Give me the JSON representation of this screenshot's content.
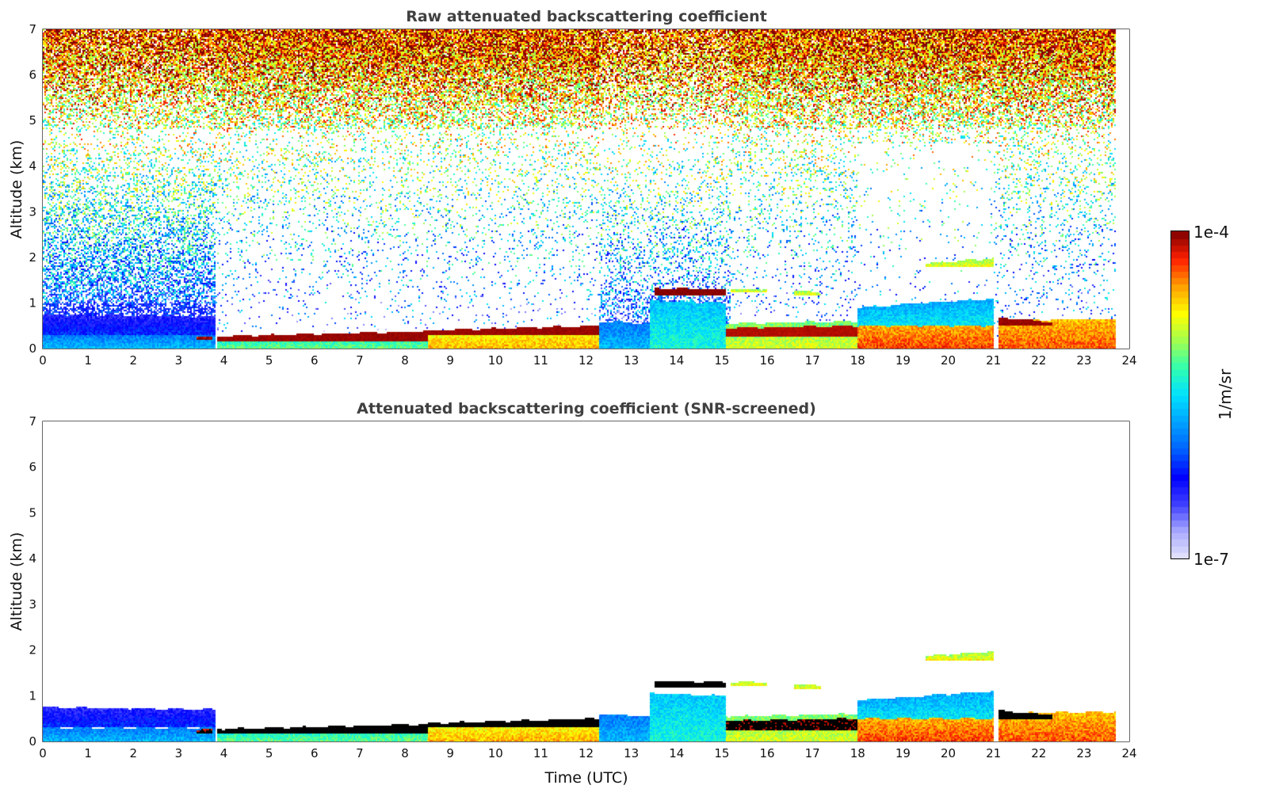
{
  "chart_data": {
    "type": "heatmap",
    "panels": [
      {
        "id": "raw",
        "title": "Raw attenuated backscattering coefficient",
        "ylabel": "Altitude (km)",
        "xlabel": "",
        "show_noise": true,
        "saturate_black": false
      },
      {
        "id": "screened",
        "title": "Attenuated backscattering coefficient (SNR-screened)",
        "ylabel": "Altitude (km)",
        "xlabel": "Time (UTC)",
        "show_noise": false,
        "saturate_black": true
      }
    ],
    "xlim": [
      0,
      24
    ],
    "ylim": [
      0,
      7
    ],
    "x_ticks": [
      "0",
      "1",
      "2",
      "3",
      "4",
      "5",
      "6",
      "7",
      "8",
      "9",
      "10",
      "11",
      "12",
      "13",
      "14",
      "15",
      "16",
      "17",
      "18",
      "19",
      "20",
      "21",
      "22",
      "23",
      "24"
    ],
    "y_ticks": [
      "0",
      "1",
      "2",
      "3",
      "4",
      "5",
      "6",
      "7"
    ],
    "data_end_time": 23.7,
    "colorbar": {
      "label": "1/m/sr",
      "min_label": "1e-7",
      "max_label": "1e-4",
      "log10_range": [
        -7,
        -4
      ],
      "colors": [
        "#e6e6fa",
        "#aaaaff",
        "#4040ff",
        "#0000ff",
        "#0060ff",
        "#00a0ff",
        "#00e0ff",
        "#30ffb0",
        "#a0ff50",
        "#ffff00",
        "#ffa000",
        "#ff2000",
        "#800000"
      ]
    },
    "layers": [
      {
        "t": [
          0,
          3.8
        ],
        "z_lo": 0,
        "z_hi": [
          0.3,
          0.3
        ],
        "log10_beta": -5.9
      },
      {
        "t": [
          0,
          3.8
        ],
        "z_lo": 0.3,
        "z_hi": [
          0.75,
          0.7
        ],
        "log10_beta": -6.4
      },
      {
        "t": [
          3.4,
          3.75
        ],
        "z_lo": 0.18,
        "z_hi": [
          0.26,
          0.26
        ],
        "log10_beta": -4.15
      },
      {
        "t": [
          3.85,
          8.5
        ],
        "z_lo": 0,
        "z_hi": [
          0.22,
          0.33
        ],
        "log10_beta": -5.4
      },
      {
        "t": [
          3.85,
          8.5
        ],
        "z_lo": 0.17,
        "z_hi": [
          0.27,
          0.38
        ],
        "log10_beta": -4.05,
        "line": true
      },
      {
        "t": [
          8.5,
          12.3
        ],
        "z_lo": 0,
        "z_hi": [
          0.35,
          0.43
        ],
        "log10_beta": -4.8
      },
      {
        "t": [
          8.5,
          12.3
        ],
        "z_lo": 0.3,
        "z_hi": [
          0.4,
          0.5
        ],
        "log10_beta": -4.05,
        "line": true
      },
      {
        "t": [
          12.3,
          13.4
        ],
        "z_lo": 0,
        "z_hi": [
          0.6,
          0.55
        ],
        "log10_beta": -5.9
      },
      {
        "t": [
          13.4,
          15.1
        ],
        "z_lo": 0,
        "z_hi": [
          1.05,
          1.0
        ],
        "log10_beta": -5.6
      },
      {
        "t": [
          13.5,
          15.1
        ],
        "z_lo": 1.18,
        "z_hi": [
          1.32,
          1.3
        ],
        "log10_beta": -4.02,
        "line": true
      },
      {
        "t": [
          15.1,
          18
        ],
        "z_lo": 0,
        "z_hi": [
          0.55,
          0.6
        ],
        "log10_beta": -5.1
      },
      {
        "t": [
          15.1,
          18
        ],
        "z_lo": 0.25,
        "z_hi": [
          0.45,
          0.5
        ],
        "log10_beta": -4.1,
        "line": true
      },
      {
        "t": [
          15.2,
          16
        ],
        "z_lo": 1.22,
        "z_hi": [
          1.3,
          1.3
        ],
        "log10_beta": -5.0
      },
      {
        "t": [
          16.6,
          17.2
        ],
        "z_lo": 1.15,
        "z_hi": [
          1.27,
          1.22
        ],
        "log10_beta": -5.0
      },
      {
        "t": [
          18,
          21
        ],
        "z_lo": 0.45,
        "z_hi": [
          0.9,
          1.1
        ],
        "log10_beta": -5.7
      },
      {
        "t": [
          18,
          21
        ],
        "z_lo": 0,
        "z_hi": [
          0.5,
          0.5
        ],
        "log10_beta": -4.55
      },
      {
        "t": [
          19.5,
          21
        ],
        "z_lo": 1.78,
        "z_hi": [
          1.86,
          1.98
        ],
        "log10_beta": -5.0
      },
      {
        "t": [
          21.1,
          23.7
        ],
        "z_lo": 0,
        "z_hi": [
          0.62,
          0.65
        ],
        "log10_beta": -4.6
      },
      {
        "t": [
          21.1,
          22.3
        ],
        "z_lo": 0.5,
        "z_hi": [
          0.68,
          0.58
        ],
        "log10_beta": -4.05,
        "line": true
      }
    ]
  }
}
